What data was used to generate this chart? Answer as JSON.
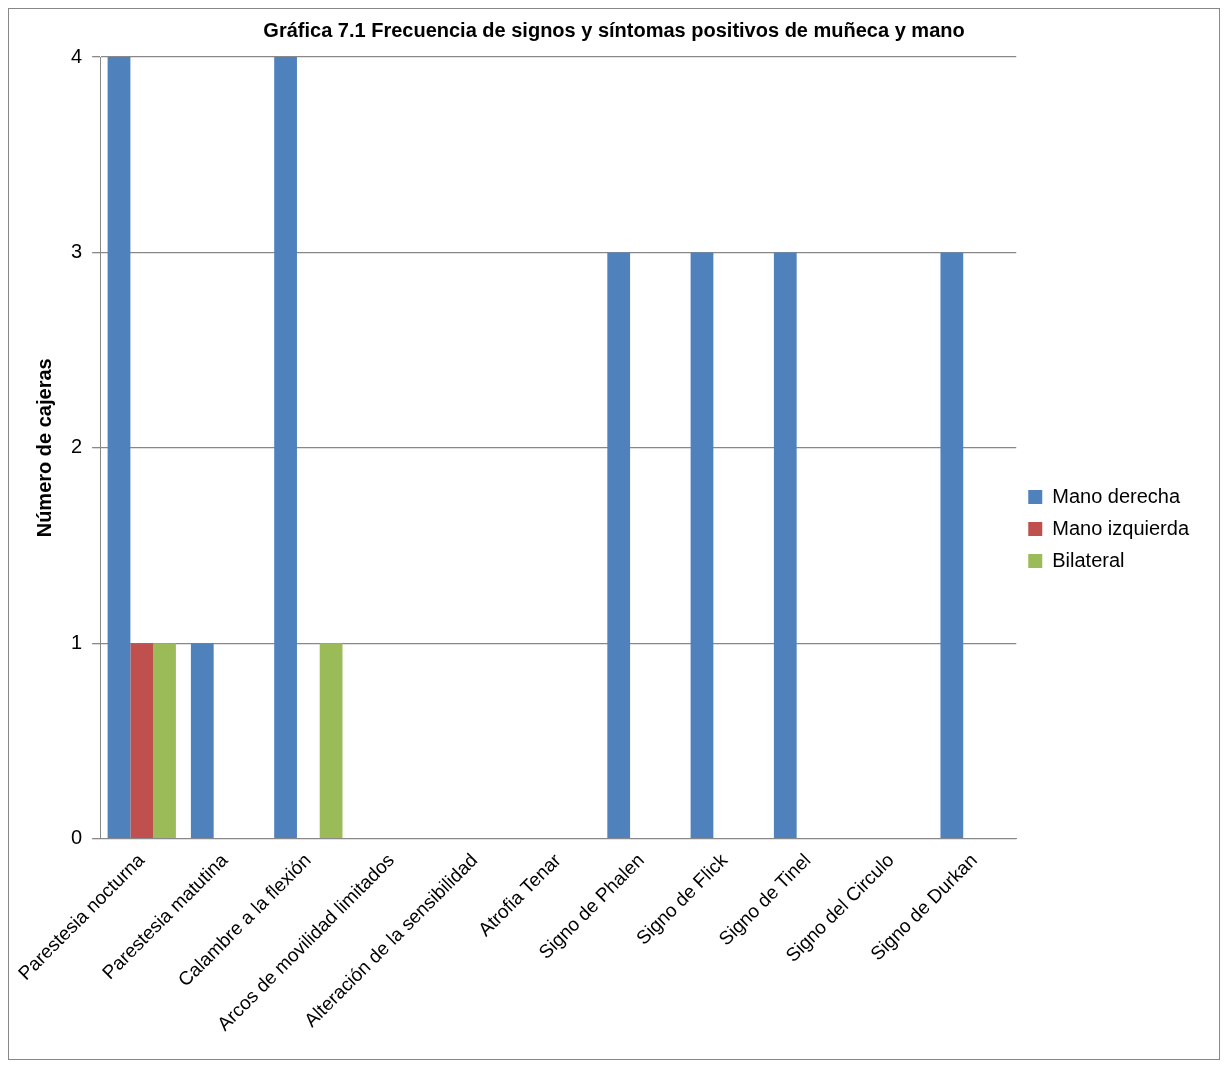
{
  "chart_data": {
    "type": "bar",
    "title": "Gráfica 7.1 Frecuencia de signos y síntomas positivos de muñeca y mano",
    "ylabel": "Número de cajeras",
    "categories": [
      "Parestesia nocturna",
      "Parestesia matutina",
      "Calambre a la flexión",
      "Arcos de movilidad limitados",
      "Alteración de la sensibilidad",
      "Atrofia Tenar",
      "Signo de Phalen",
      "Signo de Flick",
      "Signo de Tinel",
      "Signo del Circulo",
      "Signo de Durkan"
    ],
    "series": [
      {
        "name": "Mano derecha",
        "color": "#4f81bd",
        "values": [
          4,
          1,
          4,
          null,
          null,
          null,
          3,
          3,
          3,
          null,
          3
        ]
      },
      {
        "name": "Mano izquierda",
        "color": "#c0504d",
        "values": [
          1,
          null,
          null,
          null,
          null,
          null,
          null,
          null,
          null,
          null,
          null
        ]
      },
      {
        "name": "Bilateral",
        "color": "#9bbb59",
        "values": [
          1,
          null,
          1,
          null,
          null,
          null,
          null,
          null,
          null,
          null,
          null
        ]
      }
    ],
    "ylim": [
      0,
      4
    ],
    "yticks": [
      0,
      1,
      2,
      3,
      4
    ],
    "grid": "y",
    "legend": "right"
  }
}
